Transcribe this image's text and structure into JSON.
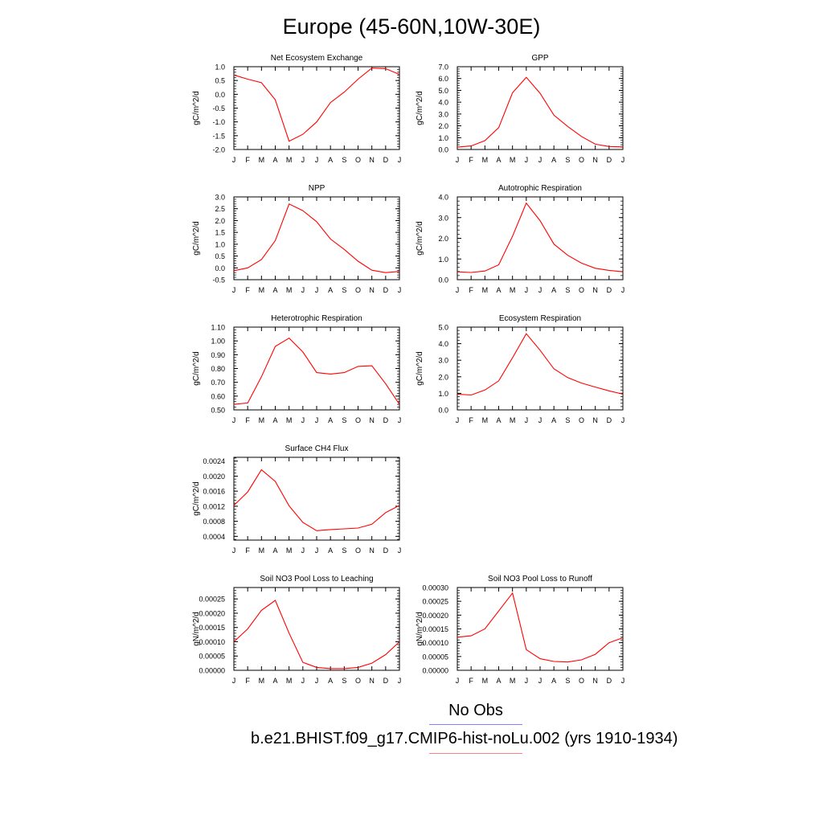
{
  "title": "Europe (45-60N,10W-30E)",
  "months": [
    "J",
    "F",
    "M",
    "A",
    "M",
    "J",
    "J",
    "A",
    "S",
    "O",
    "N",
    "D",
    "J"
  ],
  "colors": {
    "model": "#ff0000",
    "obs": "#8080ff",
    "axis": "#000000"
  },
  "legend": {
    "obs_label": "No Obs",
    "model_label": "b.e21.BHIST.f09_g17.CMIP6-hist-noLu.002 (yrs 1910-1934)"
  },
  "chart_data": [
    {
      "type": "line",
      "title": "Net Ecosystem Exchange",
      "ylabel": "gC/m^2/d",
      "ylim": [
        -2.0,
        1.0
      ],
      "yticks": [
        -2.0,
        -1.5,
        -1.0,
        -0.5,
        0.0,
        0.5,
        1.0
      ],
      "ytick_labels": [
        "-2.0",
        "-1.5",
        "-1.0",
        "-0.5",
        "0.0",
        "0.5",
        "1.0"
      ],
      "values": [
        0.7,
        0.55,
        0.42,
        -0.2,
        -1.7,
        -1.45,
        -1.0,
        -0.3,
        0.08,
        0.55,
        0.95,
        0.93,
        0.72
      ]
    },
    {
      "type": "line",
      "title": "GPP",
      "ylabel": "gC/m^2/d",
      "ylim": [
        0.0,
        7.0
      ],
      "yticks": [
        0,
        1,
        2,
        3,
        4,
        5,
        6,
        7
      ],
      "ytick_labels": [
        "0.0",
        "1.0",
        "2.0",
        "3.0",
        "4.0",
        "5.0",
        "6.0",
        "7.0"
      ],
      "values": [
        0.2,
        0.3,
        0.75,
        1.85,
        4.8,
        6.1,
        4.75,
        2.9,
        1.95,
        1.1,
        0.45,
        0.25,
        0.22
      ]
    },
    {
      "type": "line",
      "title": "NPP",
      "ylabel": "gC/m^2/d",
      "ylim": [
        -0.5,
        3.0
      ],
      "yticks": [
        -0.5,
        0,
        0.5,
        1,
        1.5,
        2,
        2.5,
        3
      ],
      "ytick_labels": [
        "-0.5",
        "0.0",
        "0.5",
        "1.0",
        "1.5",
        "2.0",
        "2.5",
        "3.0"
      ],
      "values": [
        -0.12,
        0.0,
        0.35,
        1.15,
        2.7,
        2.42,
        1.95,
        1.22,
        0.78,
        0.28,
        -0.1,
        -0.2,
        -0.15
      ]
    },
    {
      "type": "line",
      "title": "Autotrophic Respiration",
      "ylabel": "gC/m^2/d",
      "ylim": [
        0.0,
        4.0
      ],
      "yticks": [
        0,
        1,
        2,
        3,
        4
      ],
      "ytick_labels": [
        "0.0",
        "1.0",
        "2.0",
        "3.0",
        "4.0"
      ],
      "values": [
        0.38,
        0.35,
        0.42,
        0.72,
        2.1,
        3.7,
        2.85,
        1.72,
        1.18,
        0.8,
        0.55,
        0.45,
        0.38
      ]
    },
    {
      "type": "line",
      "title": "Heterotrophic Respiration",
      "ylabel": "gC/m^2/d",
      "ylim": [
        0.5,
        1.1
      ],
      "yticks": [
        0.5,
        0.6,
        0.7,
        0.8,
        0.9,
        1.0,
        1.1
      ],
      "ytick_labels": [
        "0.50",
        "0.60",
        "0.70",
        "0.80",
        "0.90",
        "1.00",
        "1.10"
      ],
      "values": [
        0.54,
        0.55,
        0.74,
        0.96,
        1.02,
        0.92,
        0.77,
        0.76,
        0.77,
        0.815,
        0.82,
        0.69,
        0.54
      ]
    },
    {
      "type": "line",
      "title": "Ecosystem Respiration",
      "ylabel": "gC/m^2/d",
      "ylim": [
        0.0,
        5.0
      ],
      "yticks": [
        0,
        1,
        2,
        3,
        4,
        5
      ],
      "ytick_labels": [
        "0.0",
        "1.0",
        "2.0",
        "3.0",
        "4.0",
        "5.0"
      ],
      "values": [
        0.95,
        0.9,
        1.2,
        1.75,
        3.15,
        4.6,
        3.6,
        2.48,
        1.95,
        1.62,
        1.38,
        1.15,
        0.95
      ]
    },
    {
      "type": "line",
      "title": "Surface CH4 Flux",
      "ylabel": "gC/m^2/d",
      "ylim": [
        0.0003,
        0.0025
      ],
      "yticks": [
        0.0004,
        0.0008,
        0.0012,
        0.0016,
        0.002,
        0.0024
      ],
      "ytick_labels": [
        "0.0004",
        "0.0008",
        "0.0012",
        "0.0016",
        "0.0020",
        "0.0024"
      ],
      "values": [
        0.00122,
        0.00158,
        0.00217,
        0.00186,
        0.00121,
        0.00077,
        0.00055,
        0.00058,
        0.0006,
        0.00062,
        0.00072,
        0.00103,
        0.00122
      ]
    },
    {
      "type": "line",
      "title": "Soil NO3 Pool Loss to Leaching",
      "ylabel": "gN/m^2/d",
      "ylim": [
        0.0,
        0.00029
      ],
      "yticks": [
        0,
        5e-05,
        0.0001,
        0.00015,
        0.0002,
        0.00025
      ],
      "ytick_labels": [
        "0.00000",
        "0.00005",
        "0.00010",
        "0.00015",
        "0.00020",
        "0.00025"
      ],
      "values": [
        0.0001,
        0.000145,
        0.00021,
        0.000245,
        0.00013,
        2.8e-05,
        1e-05,
        6e-06,
        6e-06,
        1e-05,
        2.5e-05,
        5.5e-05,
        0.0001
      ]
    },
    {
      "type": "line",
      "title": "Soil NO3 Pool Loss to Runoff",
      "ylabel": "gN/m^2/d",
      "ylim": [
        0.0,
        0.0003
      ],
      "yticks": [
        0,
        5e-05,
        0.0001,
        0.00015,
        0.0002,
        0.00025,
        0.0003
      ],
      "ytick_labels": [
        "0.00000",
        "0.00005",
        "0.00010",
        "0.00015",
        "0.00020",
        "0.00025",
        "0.00030"
      ],
      "values": [
        0.00012,
        0.000125,
        0.00015,
        0.000215,
        0.00028,
        7.5e-05,
        4.2e-05,
        3.2e-05,
        3e-05,
        3.8e-05,
        5.8e-05,
        0.0001,
        0.000118
      ]
    }
  ]
}
